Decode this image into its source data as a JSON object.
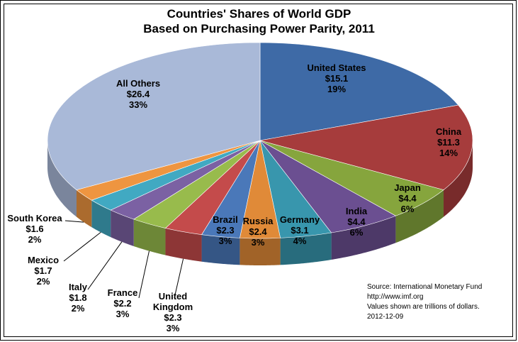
{
  "chart_data": {
    "type": "pie",
    "title": "Countries' Shares of World GDP",
    "subtitle": "Based on Purchasing Power Parity, 2011",
    "unit": "trillions of dollars",
    "slices": [
      {
        "name": "United States",
        "value_label": "$15.1",
        "pct_label": "19%",
        "value": 15.1,
        "color": "#3e6aa6"
      },
      {
        "name": "China",
        "value_label": "$11.3",
        "pct_label": "14%",
        "value": 11.3,
        "color": "#a63c3c"
      },
      {
        "name": "Japan",
        "value_label": "$4.4",
        "pct_label": "6%",
        "value": 4.4,
        "color": "#86a53d"
      },
      {
        "name": "India",
        "value_label": "$4.4",
        "pct_label": "6%",
        "value": 4.4,
        "color": "#6b4f91"
      },
      {
        "name": "Germany",
        "value_label": "$3.1",
        "pct_label": "4%",
        "value": 3.1,
        "color": "#3896ad"
      },
      {
        "name": "Russia",
        "value_label": "$2.4",
        "pct_label": "3%",
        "value": 2.4,
        "color": "#e08a38"
      },
      {
        "name": "Brazil",
        "value_label": "$2.3",
        "pct_label": "3%",
        "value": 2.3,
        "color": "#4a78b9"
      },
      {
        "name": "United Kingdom",
        "value_label": "$2.3",
        "pct_label": "3%",
        "value": 2.3,
        "color": "#c44b4b"
      },
      {
        "name": "France",
        "value_label": "$2.2",
        "pct_label": "3%",
        "value": 2.2,
        "color": "#98bb4c"
      },
      {
        "name": "Italy",
        "value_label": "$1.8",
        "pct_label": "2%",
        "value": 1.8,
        "color": "#7b61a3"
      },
      {
        "name": "Mexico",
        "value_label": "$1.7",
        "pct_label": "2%",
        "value": 1.7,
        "color": "#41a9c2"
      },
      {
        "name": "South Korea",
        "value_label": "$1.6",
        "pct_label": "2%",
        "value": 1.6,
        "color": "#ee9540"
      },
      {
        "name": "All Others",
        "value_label": "$26.4",
        "pct_label": "33%",
        "value": 26.4,
        "color": "#a9b9d8"
      }
    ]
  },
  "source": {
    "line1": "Source:  International  Monetary Fund",
    "line2": "http://www.imf.org",
    "line3": "Values shown are trillions of dollars.",
    "line4": "2012-12-09"
  }
}
